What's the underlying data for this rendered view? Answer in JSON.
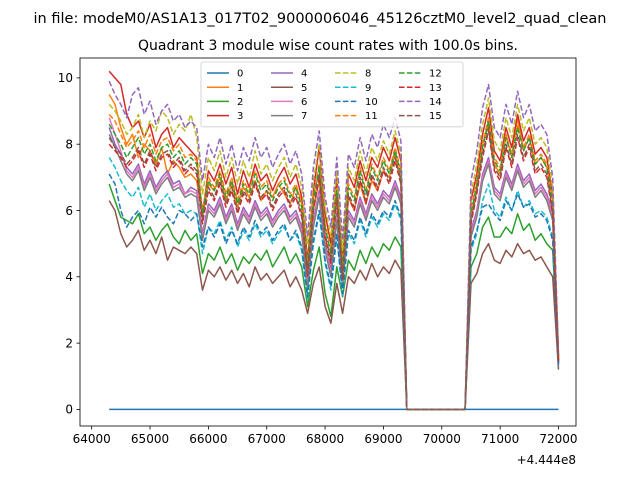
{
  "figure": {
    "suptitle": "in file: modeM0/AS1A13_017T02_9000006046_45126cztM0_level2_quad_clean",
    "title": "Quadrant 3 module wise count rates with 100.0s bins."
  },
  "chart_data": {
    "type": "line",
    "title": "Quadrant 3 module wise count rates with 100.0s bins.",
    "xlabel": "",
    "ylabel": "",
    "x_offset_label": "+4.444e8",
    "xlim": [
      63800,
      72300
    ],
    "ylim": [
      -0.5,
      10.6
    ],
    "x_ticks": [
      64000,
      65000,
      66000,
      67000,
      68000,
      69000,
      70000,
      71000,
      72000
    ],
    "y_ticks": [
      0,
      2,
      4,
      6,
      8,
      10
    ],
    "grid": false,
    "legend": {
      "placement": "top-center",
      "columns": 4
    },
    "x": [
      64300,
      64400,
      64500,
      64600,
      64700,
      64800,
      64900,
      65000,
      65100,
      65200,
      65300,
      65400,
      65500,
      65600,
      65700,
      65800,
      65900,
      66000,
      66100,
      66200,
      66300,
      66400,
      66500,
      66600,
      66700,
      66800,
      66900,
      67000,
      67100,
      67200,
      67300,
      67400,
      67500,
      67600,
      67700,
      67800,
      67900,
      68000,
      68100,
      68200,
      68300,
      68400,
      68500,
      68600,
      68700,
      68800,
      68900,
      69000,
      69100,
      69200,
      69300,
      69400,
      70400,
      70500,
      70600,
      70700,
      70800,
      70900,
      71000,
      71100,
      71200,
      71300,
      71400,
      71500,
      71600,
      71700,
      71800,
      71900,
      72000
    ],
    "series": [
      {
        "name": "0",
        "color": "#1f77b4",
        "dash": false,
        "values": [
          0,
          0,
          0,
          0,
          0,
          0,
          0,
          0,
          0,
          0,
          0,
          0,
          0,
          0,
          0,
          0,
          0,
          0,
          0,
          0,
          0,
          0,
          0,
          0,
          0,
          0,
          0,
          0,
          0,
          0,
          0,
          0,
          0,
          0,
          0,
          0,
          0,
          0,
          0,
          0,
          0,
          0,
          0,
          0,
          0,
          0,
          0,
          0,
          0,
          0,
          0,
          0,
          0,
          0,
          0,
          0,
          0,
          0,
          0,
          0,
          0,
          0,
          0,
          0,
          0,
          0,
          0,
          0,
          0
        ]
      },
      {
        "name": "1",
        "color": "#ff7f0e",
        "dash": false,
        "values": [
          9.5,
          9.2,
          8.5,
          8.0,
          8.3,
          7.6,
          8.0,
          7.8,
          7.4,
          7.9,
          7.1,
          7.5,
          7.3,
          7.0,
          7.1,
          6.9,
          5.8,
          6.8,
          6.6,
          7.0,
          6.3,
          6.8,
          6.1,
          6.7,
          6.4,
          6.9,
          6.3,
          6.6,
          6.4,
          6.8,
          6.5,
          6.2,
          6.7,
          6.3,
          4.0,
          6.0,
          6.9,
          5.2,
          4.5,
          6.5,
          4.0,
          6.4,
          6.0,
          6.8,
          6.2,
          6.9,
          6.6,
          7.2,
          7.0,
          7.7,
          6.9,
          0,
          0,
          5.8,
          6.6,
          8.0,
          8.6,
          7.4,
          7.1,
          8.3,
          7.6,
          8.8,
          7.8,
          8.2,
          7.4,
          7.6,
          7.3,
          6.3,
          1.6
        ]
      },
      {
        "name": "2",
        "color": "#2ca02c",
        "dash": false,
        "values": [
          6.8,
          6.3,
          5.8,
          5.7,
          5.6,
          5.9,
          5.3,
          5.5,
          5.1,
          5.4,
          5.6,
          5.2,
          5.0,
          5.4,
          5.1,
          5.3,
          4.1,
          4.7,
          4.5,
          4.9,
          4.4,
          4.7,
          4.2,
          4.6,
          4.4,
          4.7,
          4.5,
          4.8,
          4.3,
          4.6,
          4.9,
          4.4,
          4.7,
          4.3,
          3.1,
          4.2,
          4.9,
          3.5,
          2.8,
          4.3,
          3.4,
          4.5,
          4.2,
          4.8,
          4.4,
          4.9,
          4.6,
          5.0,
          4.8,
          5.2,
          4.9,
          0,
          0,
          4.3,
          4.7,
          5.5,
          5.8,
          5.2,
          5.2,
          5.5,
          5.3,
          5.9,
          5.4,
          5.6,
          5.1,
          5.3,
          5.0,
          4.8,
          1.4
        ]
      },
      {
        "name": "3",
        "color": "#d62728",
        "dash": false,
        "values": [
          10.2,
          10.0,
          9.8,
          8.9,
          8.5,
          8.7,
          8.2,
          8.6,
          7.9,
          8.3,
          8.5,
          7.9,
          8.2,
          8.0,
          7.8,
          7.6,
          5.9,
          7.2,
          6.9,
          7.4,
          6.8,
          7.3,
          6.5,
          7.2,
          6.7,
          7.4,
          6.9,
          7.1,
          6.6,
          7.0,
          7.3,
          6.8,
          7.1,
          6.4,
          4.5,
          6.6,
          7.9,
          5.9,
          5.0,
          7.0,
          4.4,
          7.1,
          6.7,
          7.5,
          6.9,
          7.6,
          7.3,
          7.9,
          7.5,
          8.2,
          7.5,
          0,
          0,
          6.3,
          7.1,
          8.3,
          9.1,
          7.8,
          7.5,
          8.5,
          7.9,
          8.9,
          8.1,
          8.5,
          7.7,
          7.9,
          7.6,
          6.4,
          1.5
        ]
      },
      {
        "name": "4",
        "color": "#9467bd",
        "dash": false,
        "values": [
          8.5,
          8.0,
          7.7,
          7.3,
          7.1,
          7.4,
          6.8,
          7.2,
          6.7,
          7.0,
          7.2,
          6.8,
          6.9,
          6.5,
          6.7,
          6.6,
          5.3,
          6.2,
          6.0,
          6.4,
          5.8,
          6.2,
          5.6,
          6.1,
          5.8,
          6.3,
          5.9,
          6.1,
          5.7,
          6.0,
          6.2,
          5.8,
          6.0,
          5.5,
          3.8,
          5.7,
          6.6,
          5.0,
          4.2,
          5.9,
          3.9,
          6.0,
          5.7,
          6.4,
          5.9,
          6.5,
          6.2,
          6.6,
          6.4,
          6.9,
          6.4,
          0,
          0,
          5.4,
          6.0,
          7.1,
          7.6,
          6.7,
          6.5,
          7.2,
          6.8,
          7.4,
          6.9,
          7.1,
          6.6,
          6.8,
          6.5,
          5.9,
          1.4
        ]
      },
      {
        "name": "5",
        "color": "#8c564b",
        "dash": false,
        "values": [
          6.3,
          6.0,
          5.3,
          4.9,
          5.1,
          5.4,
          4.8,
          5.1,
          4.7,
          5.2,
          4.5,
          4.9,
          4.8,
          4.7,
          4.9,
          4.7,
          3.6,
          4.2,
          4.0,
          4.3,
          3.9,
          4.2,
          3.8,
          4.1,
          3.7,
          4.3,
          3.9,
          4.1,
          3.8,
          4.0,
          4.2,
          3.7,
          4.0,
          3.6,
          2.9,
          3.8,
          4.3,
          3.1,
          2.6,
          3.8,
          2.9,
          4.0,
          3.8,
          4.2,
          3.9,
          4.4,
          4.0,
          4.3,
          4.1,
          4.5,
          4.2,
          0,
          0,
          3.8,
          4.1,
          4.7,
          5.0,
          4.5,
          4.4,
          4.8,
          4.6,
          5.0,
          4.7,
          4.8,
          4.5,
          4.6,
          4.3,
          4.0,
          1.2
        ]
      },
      {
        "name": "6",
        "color": "#e377c2",
        "dash": false,
        "values": [
          8.8,
          8.3,
          7.8,
          7.2,
          7.0,
          7.3,
          6.7,
          7.1,
          6.6,
          6.9,
          7.1,
          6.7,
          6.8,
          6.5,
          6.6,
          6.5,
          5.2,
          6.1,
          5.9,
          6.3,
          5.7,
          6.1,
          5.5,
          6.0,
          5.7,
          6.2,
          5.8,
          6.0,
          5.6,
          5.9,
          6.1,
          5.7,
          5.9,
          5.4,
          3.7,
          5.6,
          6.5,
          4.9,
          4.1,
          5.8,
          3.8,
          5.9,
          5.6,
          6.3,
          5.8,
          6.4,
          6.1,
          6.5,
          6.3,
          6.8,
          6.3,
          0,
          0,
          5.3,
          5.9,
          7.0,
          7.5,
          6.6,
          6.4,
          7.1,
          6.7,
          7.3,
          6.8,
          7.0,
          6.5,
          6.7,
          6.4,
          5.8,
          1.5
        ]
      },
      {
        "name": "7",
        "color": "#7f7f7f",
        "dash": false,
        "values": [
          8.3,
          7.9,
          7.5,
          7.1,
          6.9,
          7.2,
          6.6,
          7.0,
          6.5,
          6.8,
          7.0,
          6.6,
          6.7,
          6.4,
          6.5,
          6.4,
          5.1,
          6.0,
          5.8,
          6.2,
          5.6,
          6.0,
          5.4,
          5.9,
          5.6,
          6.1,
          5.7,
          5.9,
          5.5,
          5.8,
          6.0,
          5.6,
          5.8,
          5.3,
          3.6,
          5.5,
          6.4,
          4.8,
          4.0,
          5.7,
          3.7,
          5.8,
          5.5,
          6.2,
          5.7,
          6.3,
          6.0,
          6.4,
          6.2,
          6.7,
          6.2,
          0,
          0,
          5.2,
          5.8,
          6.9,
          7.4,
          6.5,
          6.3,
          7.0,
          6.6,
          7.2,
          6.7,
          6.9,
          6.4,
          6.6,
          6.3,
          5.7,
          1.4
        ]
      },
      {
        "name": "8",
        "color": "#bcbd22",
        "dash": true,
        "values": [
          9.2,
          9.0,
          8.7,
          8.3,
          8.5,
          8.9,
          8.2,
          8.7,
          8.4,
          9.0,
          8.8,
          8.3,
          8.6,
          8.4,
          8.9,
          8.2,
          6.5,
          7.6,
          7.2,
          7.8,
          7.0,
          7.6,
          6.8,
          7.5,
          7.0,
          7.8,
          7.1,
          7.4,
          6.9,
          7.3,
          7.6,
          7.0,
          7.4,
          6.7,
          5.0,
          6.9,
          8.0,
          6.1,
          5.2,
          7.2,
          4.8,
          7.3,
          6.9,
          7.8,
          7.1,
          7.9,
          7.5,
          8.1,
          7.7,
          8.4,
          7.7,
          0,
          0,
          6.5,
          7.4,
          8.6,
          9.4,
          8.1,
          7.8,
          8.8,
          8.2,
          9.2,
          8.4,
          8.8,
          8.0,
          8.2,
          7.9,
          6.7,
          1.6
        ]
      },
      {
        "name": "9",
        "color": "#17becf",
        "dash": true,
        "values": [
          7.6,
          7.3,
          6.9,
          6.6,
          6.4,
          6.7,
          6.1,
          6.5,
          6.0,
          6.3,
          6.5,
          6.1,
          6.2,
          5.9,
          6.0,
          5.9,
          4.7,
          5.5,
          5.3,
          5.7,
          5.1,
          5.5,
          4.9,
          5.4,
          5.1,
          5.6,
          5.2,
          5.4,
          5.0,
          5.3,
          5.5,
          5.1,
          5.3,
          4.8,
          3.3,
          5.0,
          5.9,
          4.4,
          3.6,
          5.2,
          3.4,
          5.3,
          5.0,
          5.7,
          5.2,
          5.8,
          5.5,
          5.9,
          5.7,
          6.2,
          5.7,
          0,
          0,
          4.8,
          5.3,
          6.3,
          6.8,
          6.0,
          5.8,
          6.4,
          6.0,
          6.6,
          6.1,
          6.3,
          5.9,
          6.0,
          5.8,
          5.2,
          1.3
        ]
      },
      {
        "name": "10",
        "color": "#1f77b4",
        "dash": true,
        "values": [
          7.1,
          6.8,
          6.0,
          5.5,
          5.8,
          6.0,
          5.6,
          6.1,
          5.8,
          6.1,
          5.8,
          5.6,
          6.0,
          5.9,
          5.7,
          5.9,
          4.9,
          5.5,
          5.2,
          5.6,
          5.0,
          5.4,
          5.0,
          5.5,
          5.2,
          5.7,
          5.3,
          5.5,
          5.1,
          5.4,
          5.6,
          5.1,
          5.4,
          4.9,
          3.4,
          5.1,
          6.0,
          4.5,
          3.7,
          5.3,
          3.5,
          5.4,
          5.1,
          5.8,
          5.3,
          5.9,
          5.6,
          6.0,
          5.8,
          6.3,
          5.8,
          0,
          0,
          4.9,
          5.4,
          6.1,
          6.2,
          5.9,
          5.7,
          6.3,
          6.0,
          6.5,
          6.1,
          6.2,
          5.8,
          5.9,
          5.7,
          5.1,
          1.3
        ]
      },
      {
        "name": "11",
        "color": "#ff7f0e",
        "dash": true,
        "values": [
          8.9,
          8.7,
          8.3,
          7.9,
          8.1,
          8.4,
          7.9,
          8.3,
          7.7,
          8.1,
          8.2,
          7.8,
          8.0,
          7.6,
          7.7,
          7.5,
          6.0,
          7.0,
          6.7,
          7.2,
          6.5,
          7.0,
          6.3,
          6.9,
          6.6,
          7.2,
          6.7,
          6.9,
          6.4,
          6.8,
          7.0,
          6.5,
          6.8,
          6.2,
          4.4,
          6.4,
          7.4,
          5.6,
          4.8,
          6.7,
          4.3,
          6.8,
          6.4,
          7.3,
          6.6,
          7.4,
          7.0,
          7.6,
          7.2,
          7.9,
          7.2,
          0,
          0,
          6.0,
          6.9,
          8.0,
          8.8,
          7.6,
          7.3,
          8.3,
          7.7,
          8.6,
          7.9,
          8.3,
          7.5,
          7.7,
          7.4,
          6.3,
          1.6
        ]
      },
      {
        "name": "12",
        "color": "#2ca02c",
        "dash": true,
        "values": [
          8.6,
          8.3,
          8.0,
          7.6,
          7.9,
          8.2,
          7.7,
          8.0,
          7.5,
          7.9,
          8.0,
          7.6,
          7.8,
          7.4,
          7.6,
          7.4,
          5.9,
          6.9,
          6.6,
          7.1,
          6.4,
          6.9,
          6.2,
          6.8,
          6.5,
          7.1,
          6.6,
          6.8,
          6.3,
          6.7,
          6.9,
          6.4,
          6.7,
          6.1,
          4.3,
          6.3,
          7.3,
          5.5,
          4.7,
          6.6,
          4.2,
          6.7,
          6.3,
          7.2,
          6.5,
          7.3,
          6.9,
          7.5,
          7.1,
          7.8,
          7.1,
          0,
          0,
          5.9,
          6.8,
          7.9,
          8.7,
          7.5,
          7.2,
          8.2,
          7.6,
          8.5,
          7.8,
          8.2,
          7.4,
          7.6,
          7.3,
          6.2,
          1.5
        ]
      },
      {
        "name": "13",
        "color": "#d62728",
        "dash": true,
        "values": [
          8.0,
          7.8,
          7.6,
          7.3,
          7.5,
          7.8,
          7.3,
          7.7,
          7.2,
          7.6,
          7.7,
          7.3,
          7.5,
          7.1,
          7.3,
          7.1,
          5.6,
          6.6,
          6.3,
          6.8,
          6.1,
          6.6,
          5.9,
          6.5,
          6.2,
          6.8,
          6.3,
          6.5,
          6.0,
          6.4,
          6.6,
          6.1,
          6.4,
          5.8,
          4.0,
          6.0,
          7.0,
          5.2,
          4.4,
          6.3,
          3.9,
          6.4,
          6.0,
          6.9,
          6.2,
          7.0,
          6.6,
          7.2,
          6.8,
          7.5,
          6.8,
          0,
          0,
          5.6,
          6.5,
          7.6,
          8.4,
          7.2,
          6.9,
          7.9,
          7.3,
          8.2,
          7.5,
          7.9,
          7.1,
          7.3,
          7.0,
          5.9,
          1.4
        ]
      },
      {
        "name": "14",
        "color": "#9467bd",
        "dash": true,
        "values": [
          9.9,
          9.5,
          9.2,
          8.8,
          9.5,
          9.7,
          8.9,
          9.3,
          8.6,
          9.0,
          9.2,
          8.7,
          8.9,
          8.5,
          8.7,
          8.5,
          6.9,
          8.0,
          7.6,
          8.2,
          7.4,
          8.0,
          7.2,
          7.9,
          7.5,
          8.2,
          7.6,
          7.9,
          7.3,
          7.7,
          8.0,
          7.4,
          7.8,
          7.1,
          5.2,
          7.3,
          8.4,
          6.4,
          5.5,
          7.6,
          5.1,
          7.7,
          7.3,
          8.2,
          7.5,
          8.3,
          7.9,
          8.6,
          8.2,
          8.8,
          8.1,
          0,
          0,
          6.9,
          7.8,
          9.1,
          9.8,
          8.5,
          8.2,
          9.2,
          8.6,
          9.6,
          8.8,
          9.2,
          8.4,
          8.6,
          8.3,
          7.0,
          1.7
        ]
      },
      {
        "name": "15",
        "color": "#8c564b",
        "dash": true,
        "values": [
          8.2,
          7.9,
          7.7,
          7.4,
          7.6,
          7.9,
          7.4,
          7.8,
          7.3,
          7.7,
          7.8,
          7.4,
          7.6,
          7.2,
          7.4,
          7.2,
          5.7,
          6.7,
          6.4,
          6.9,
          6.2,
          6.7,
          6.0,
          6.6,
          6.3,
          6.9,
          6.4,
          6.6,
          6.1,
          6.5,
          6.7,
          6.2,
          6.5,
          5.9,
          4.1,
          6.1,
          7.1,
          5.3,
          4.5,
          6.4,
          4.0,
          6.5,
          6.1,
          7.0,
          6.3,
          7.1,
          6.7,
          7.3,
          6.9,
          7.6,
          6.9,
          0,
          0,
          5.7,
          6.6,
          7.7,
          8.5,
          7.3,
          7.0,
          8.0,
          7.4,
          8.3,
          7.6,
          8.0,
          7.2,
          7.4,
          7.1,
          6.0,
          1.5
        ]
      }
    ]
  }
}
